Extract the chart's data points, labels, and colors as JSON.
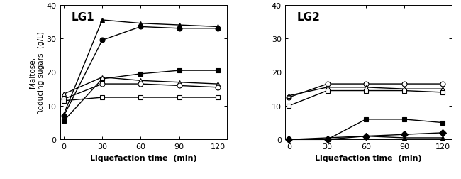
{
  "x": [
    0,
    30,
    60,
    90,
    120
  ],
  "lg1": {
    "label": "LG1",
    "series": [
      {
        "marker": "^",
        "filled": true,
        "y": [
          7.5,
          35.5,
          34.5,
          34.0,
          33.5
        ]
      },
      {
        "marker": "o",
        "filled": true,
        "y": [
          7.0,
          29.5,
          33.5,
          33.0,
          33.0
        ]
      },
      {
        "marker": "s",
        "filled": true,
        "y": [
          5.5,
          18.0,
          19.5,
          20.5,
          20.5
        ]
      },
      {
        "marker": "^",
        "filled": false,
        "y": [
          13.5,
          18.5,
          17.5,
          17.0,
          16.5
        ]
      },
      {
        "marker": "o",
        "filled": false,
        "y": [
          12.0,
          16.5,
          16.5,
          16.0,
          15.5
        ]
      },
      {
        "marker": "s",
        "filled": false,
        "y": [
          11.5,
          12.5,
          12.5,
          12.5,
          12.5
        ]
      }
    ]
  },
  "lg2": {
    "label": "LG2",
    "series": [
      {
        "marker": "o",
        "filled": false,
        "y": [
          12.5,
          16.5,
          16.5,
          16.5,
          16.5
        ]
      },
      {
        "marker": "^",
        "filled": false,
        "y": [
          13.0,
          15.5,
          15.5,
          15.0,
          15.0
        ]
      },
      {
        "marker": "s",
        "filled": false,
        "y": [
          10.0,
          14.5,
          14.5,
          14.5,
          14.0
        ]
      },
      {
        "marker": "^",
        "filled": true,
        "y": [
          0.0,
          0.5,
          1.0,
          0.5,
          0.5
        ]
      },
      {
        "marker": "s",
        "filled": true,
        "y": [
          0.0,
          0.0,
          6.0,
          6.0,
          5.0
        ]
      },
      {
        "marker": "D",
        "filled": true,
        "y": [
          0.0,
          0.0,
          1.0,
          1.5,
          2.0
        ]
      }
    ]
  },
  "ylim": [
    0,
    40
  ],
  "yticks": [
    0,
    10,
    20,
    30,
    40
  ],
  "xticks": [
    0,
    30,
    60,
    90,
    120
  ],
  "xlabel": "Liquefaction time  (min)",
  "ylabel_line1": "Maltose,",
  "ylabel_line2": "Reducing sugars  (g/L)",
  "color": "black",
  "linewidth": 1.0,
  "markersize": 5,
  "label_fontsize": 11,
  "tick_fontsize": 8,
  "axis_label_fontsize": 8
}
